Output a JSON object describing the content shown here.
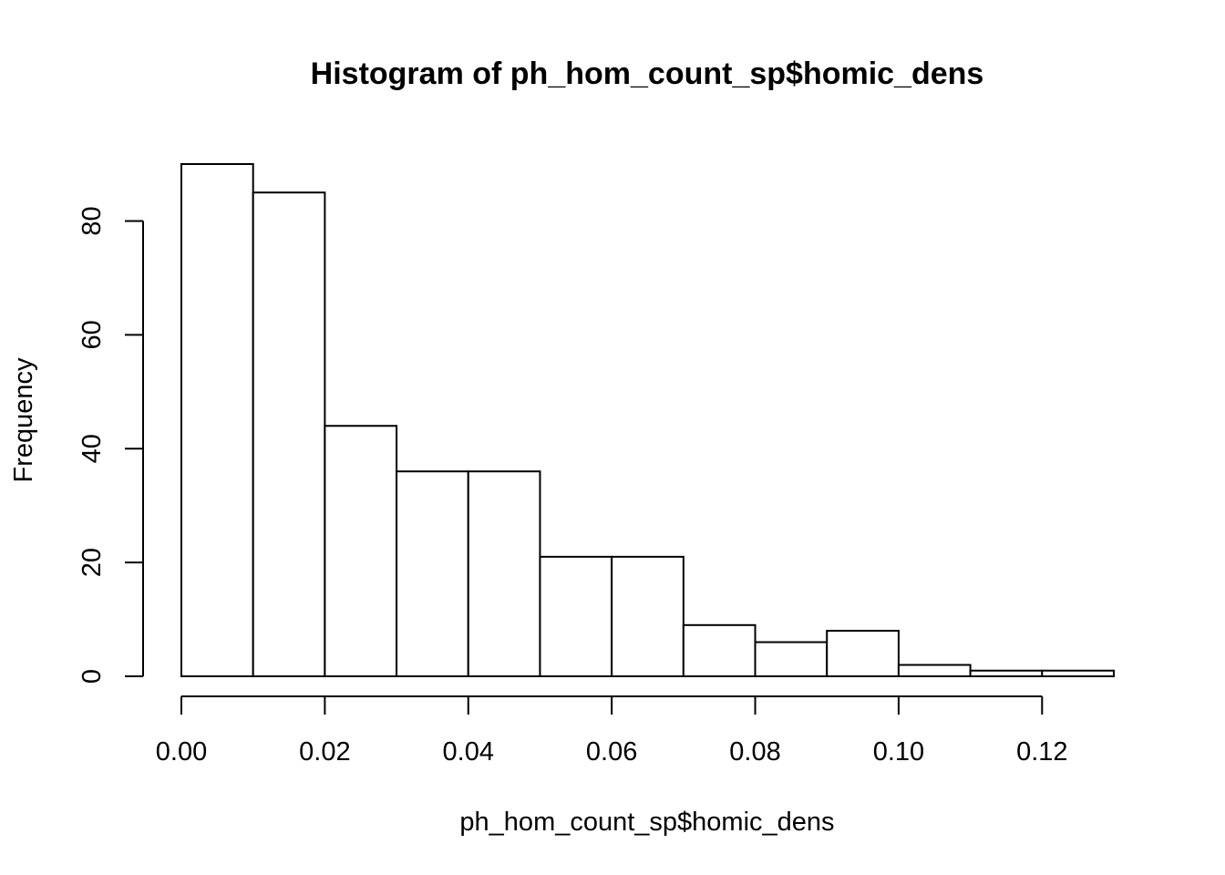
{
  "chart_data": {
    "type": "bar",
    "subtype": "histogram",
    "title": "Histogram of ph_hom_count_sp$homic_dens",
    "xlabel": "ph_hom_count_sp$homic_dens",
    "ylabel": "Frequency",
    "bin_edges": [
      0.0,
      0.01,
      0.02,
      0.03,
      0.04,
      0.05,
      0.06,
      0.07,
      0.08,
      0.09,
      0.1,
      0.11,
      0.12,
      0.13
    ],
    "values": [
      90,
      85,
      44,
      36,
      36,
      21,
      21,
      9,
      6,
      8,
      2,
      1,
      1
    ],
    "xlim": [
      0.0,
      0.13
    ],
    "ylim": [
      0,
      90
    ],
    "x_ticks": [
      {
        "value": 0.0,
        "label": "0.00"
      },
      {
        "value": 0.02,
        "label": "0.02"
      },
      {
        "value": 0.04,
        "label": "0.04"
      },
      {
        "value": 0.06,
        "label": "0.06"
      },
      {
        "value": 0.08,
        "label": "0.08"
      },
      {
        "value": 0.1,
        "label": "0.10"
      },
      {
        "value": 0.12,
        "label": "0.12"
      }
    ],
    "y_ticks": [
      {
        "value": 0,
        "label": "0"
      },
      {
        "value": 20,
        "label": "20"
      },
      {
        "value": 40,
        "label": "40"
      },
      {
        "value": 60,
        "label": "60"
      },
      {
        "value": 80,
        "label": "80"
      }
    ],
    "grid": false,
    "fill_color": "#ffffff",
    "border_color": "#000000"
  }
}
